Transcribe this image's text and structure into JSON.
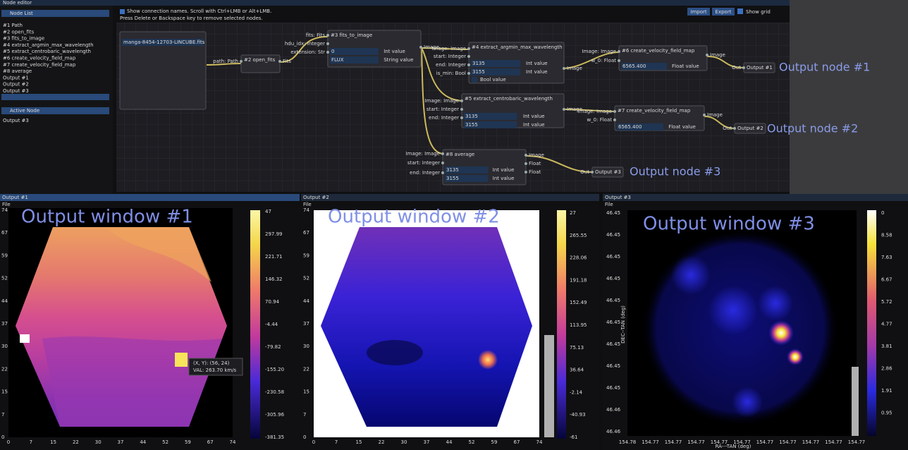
{
  "editor": {
    "title": "Node editor",
    "hint_lines": [
      "Show connection names.  Scroll with Ctrl+LMB or Alt+LMB.",
      "Press Delete or Backspace key to remove selected nodes."
    ],
    "buttons": [
      "Import",
      "Export"
    ],
    "show_grid": "Show grid"
  },
  "node_list": {
    "title": "Node List",
    "items": [
      "#1 Path",
      "#2 open_fits",
      "#3 fits_to_image",
      "#4 extract_argmin_max_wavelength",
      "#5 extract_centrobaric_wavelength",
      "#6 create_velocity_field_map",
      "#7 create_velocity_field_map",
      "#8 average",
      "Output #1",
      "Output #2",
      "Output #3"
    ]
  },
  "active_node": {
    "title": "Active Node",
    "items": [
      "Output #3"
    ]
  },
  "nodes": [
    {
      "fields": [
        {
          "value": "manga-8454-12703-LINCUBE.fits"
        }
      ]
    },
    {
      "title": "#2 open_fits",
      "inputs": [
        "path: Path"
      ],
      "outputs": [
        "Fits"
      ]
    },
    {
      "title": "#3 fits_to_image",
      "inputs": [
        "fits: Fits",
        "hdu_idx: Integer",
        "extension: Str"
      ],
      "fields": [
        {
          "value": "0",
          "label": "Int value"
        },
        {
          "value": "FLUX",
          "label": "String value"
        }
      ],
      "outputs": [
        "Image"
      ]
    },
    {
      "title": "#4 extract_argmin_max_wavelength",
      "inputs": [
        "Image: Image",
        "start: Integer",
        "end: Integer",
        "is_min: Bool"
      ],
      "fields": [
        {
          "value": "3135",
          "label": "Int value"
        },
        {
          "value": "3155",
          "label": "Int value"
        },
        {
          "label": "Bool value"
        }
      ],
      "outputs": [
        "Image"
      ]
    },
    {
      "title": "#6 create_velocity_field_map",
      "inputs": [
        "Image: Image",
        "w_0: Float"
      ],
      "fields": [
        {
          "value": "6565.400",
          "label": "Float value"
        }
      ],
      "outputs": [
        "Image"
      ]
    },
    {
      "title": "Output #1",
      "inputs": [
        "Out"
      ]
    },
    {
      "title": "#5 extract_centrobaric_wavelength",
      "inputs": [
        "Image: Image",
        "start: Integer",
        "end: Integer"
      ],
      "fields": [
        {
          "value": "3135",
          "label": "Int value"
        },
        {
          "value": "3155",
          "label": "Int value"
        }
      ],
      "outputs": [
        "Image"
      ]
    },
    {
      "title": "#7 create_velocity_field_map",
      "inputs": [
        "Image: Image",
        "w_0: Float"
      ],
      "fields": [
        {
          "value": "6565.400",
          "label": "Float value"
        }
      ],
      "outputs": [
        "Image"
      ]
    },
    {
      "title": "Output #2",
      "inputs": [
        "Out"
      ]
    },
    {
      "title": "#8 average",
      "inputs": [
        "Image: Image",
        "start: Integer",
        "end: Integer"
      ],
      "fields": [
        {
          "value": "3135",
          "label": "Int value"
        },
        {
          "value": "3155",
          "label": "Int value"
        }
      ],
      "outputs": [
        "Image",
        "Float",
        "Float"
      ]
    },
    {
      "title": "Output #3",
      "inputs": [
        "Out"
      ]
    }
  ],
  "annotations": [
    "Output node #1",
    "Output node #2",
    "Output node #3"
  ],
  "windows": [
    {
      "title": "Output #1",
      "menu": "File",
      "overlay": "Output window #1",
      "colorbar_labels": [
        "47",
        "297.99",
        "221.71",
        "146.32",
        "70.94",
        "-4.44",
        "-79.82",
        "-155.20",
        "-230.58",
        "-305.96",
        "-381.35"
      ],
      "y_labels": [
        "74",
        "67",
        "59",
        "52",
        "44",
        "37",
        "30",
        "22",
        "15",
        "7",
        "0"
      ],
      "x_labels": [
        "0",
        "7",
        "15",
        "22",
        "30",
        "37",
        "44",
        "52",
        "59",
        "67",
        "74"
      ],
      "tooltip": [
        "(X, Y): (56, 24)",
        "VAL:  263.70 km/s"
      ]
    },
    {
      "title": "Output #2",
      "menu": "File",
      "overlay": "Output window #2",
      "colorbar_labels": [
        "27",
        "265.55",
        "228.06",
        "191.18",
        "152.49",
        "113.95",
        "75.13",
        "36.64",
        "-2.14",
        "-40.93",
        "-61"
      ],
      "y_labels": [
        "74",
        "67",
        "59",
        "52",
        "44",
        "37",
        "30",
        "22",
        "15",
        "7",
        "0"
      ],
      "x_labels": [
        "0",
        "7",
        "15",
        "22",
        "30",
        "37",
        "44",
        "52",
        "59",
        "67",
        "74"
      ]
    },
    {
      "title": "Output #3",
      "menu": "File",
      "overlay": "Output window #3",
      "colorbar_labels": [
        "0",
        "8.58",
        "7.63",
        "6.67",
        "5.72",
        "4.77",
        "3.81",
        "2.86",
        "1.91",
        "0.95"
      ],
      "y_labels": [
        "46.45",
        "46.45",
        "46.45",
        "46.45",
        "46.45",
        "46.45",
        "46.45",
        "46.45",
        "46.45",
        "46.46",
        "46.46"
      ],
      "x_labels": [
        "154.78",
        "154.77",
        "154.77",
        "154.77",
        "154.77",
        "154.77",
        "154.77",
        "154.77",
        "154.77",
        "154.77",
        "154.77"
      ],
      "axis_titles": [
        "DEC--TAN (deg)",
        "RA---TAN (deg)"
      ]
    }
  ]
}
